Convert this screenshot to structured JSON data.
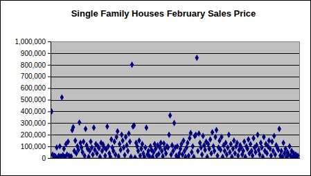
{
  "chart_data": {
    "type": "scatter",
    "title": "Single Family Houses February Sales Price",
    "x": [
      1,
      2,
      3,
      4,
      5,
      6,
      7,
      8,
      9,
      10,
      11,
      12,
      13,
      14,
      15,
      16,
      17,
      18,
      19,
      20,
      21,
      22,
      23,
      24,
      25,
      26,
      27,
      28,
      29,
      30,
      31,
      32,
      33,
      34,
      35,
      36,
      37,
      38,
      39,
      40,
      41,
      42,
      43,
      44,
      45,
      46,
      47,
      48,
      49,
      50,
      51,
      52,
      53,
      54,
      55,
      56,
      57,
      58,
      59,
      60,
      61,
      62,
      63,
      64,
      65,
      66,
      67,
      68,
      69,
      70,
      71,
      72,
      73,
      74,
      75,
      76,
      77,
      78,
      79,
      80,
      81,
      82,
      83,
      84,
      85,
      86,
      87,
      88,
      89,
      90,
      91,
      92,
      93,
      94,
      95,
      96,
      97,
      98,
      99,
      100,
      101,
      102,
      103,
      104,
      105,
      106,
      107,
      108,
      109,
      110,
      111,
      112,
      113,
      114,
      115,
      116,
      117,
      118,
      119,
      120,
      121,
      122,
      123,
      124,
      125,
      126,
      127,
      128,
      129,
      130,
      131,
      132,
      133,
      134,
      135,
      136,
      137,
      138,
      139,
      140,
      141,
      142,
      143,
      144,
      145,
      146,
      147,
      148,
      149,
      150,
      151,
      152,
      153,
      154,
      155,
      156,
      157,
      158,
      159,
      160,
      161,
      162,
      163,
      164,
      165,
      166,
      167,
      168,
      169,
      170,
      171,
      172,
      173,
      174,
      175,
      176,
      177,
      178,
      179,
      180,
      181,
      182,
      183,
      184,
      185,
      186,
      187,
      188,
      189,
      190,
      191,
      192,
      193,
      194,
      195,
      196,
      197,
      198,
      199,
      200,
      201,
      202,
      203,
      204,
      205,
      206,
      207,
      208,
      209,
      210,
      211,
      212,
      213,
      214,
      215,
      216,
      217,
      218,
      219,
      220,
      221,
      222,
      223,
      224,
      225,
      226,
      227,
      228,
      229,
      230,
      231,
      232,
      233,
      234,
      235,
      236,
      237,
      238,
      239,
      240
    ],
    "values": [
      400000,
      30000,
      15000,
      20000,
      10000,
      90000,
      5000,
      20000,
      100000,
      15000,
      520000,
      25000,
      80000,
      10000,
      120000,
      30000,
      140000,
      20000,
      5000,
      15000,
      240000,
      265000,
      60000,
      150000,
      40000,
      100000,
      70000,
      305000,
      130000,
      90000,
      50000,
      140000,
      20000,
      250000,
      110000,
      80000,
      10000,
      60000,
      140000,
      90000,
      30000,
      260000,
      70000,
      120000,
      40000,
      100000,
      85000,
      10000,
      130000,
      60000,
      115000,
      90000,
      20000,
      75000,
      270000,
      100000,
      40000,
      10000,
      160000,
      90000,
      60000,
      140000,
      30000,
      180000,
      230000,
      15000,
      120000,
      70000,
      200000,
      150000,
      90000,
      25000,
      180000,
      110000,
      60000,
      210000,
      140000,
      10000,
      800000,
      270000,
      280000,
      5000,
      130000,
      100000,
      60000,
      150000,
      20000,
      80000,
      120000,
      40000,
      10000,
      90000,
      260000,
      30000,
      60000,
      15000,
      100000,
      70000,
      10000,
      50000,
      120000,
      80000,
      20000,
      110000,
      35000,
      90000,
      130000,
      60000,
      15000,
      125000,
      80000,
      40000,
      100000,
      90000,
      200000,
      365000,
      30000,
      110000,
      60000,
      300000,
      90000,
      20000,
      100000,
      10000,
      40000,
      80000,
      120000,
      30000,
      150000,
      60000,
      10000,
      90000,
      130000,
      20000,
      170000,
      215000,
      50000,
      100000,
      10000,
      190000,
      200000,
      860000,
      60000,
      210000,
      130000,
      90000,
      30000,
      190000,
      110000,
      70000,
      140000,
      10000,
      120000,
      80000,
      160000,
      40000,
      220000,
      100000,
      60000,
      180000,
      240000,
      20000,
      90000,
      150000,
      70000,
      180000,
      10000,
      110000,
      60000,
      130000,
      30000,
      90000,
      200000,
      50000,
      120000,
      10000,
      80000,
      150000,
      40000,
      100000,
      130000,
      20000,
      70000,
      110000,
      90000,
      30000,
      60000,
      140000,
      10000,
      100000,
      80000,
      160000,
      40000,
      120000,
      60000,
      20000,
      170000,
      90000,
      50000,
      110000,
      200000,
      70000,
      30000,
      130000,
      90000,
      10000,
      180000,
      60000,
      120000,
      40000,
      100000,
      150000,
      80000,
      20000,
      140000,
      60000,
      190000,
      30000,
      110000,
      90000,
      70000,
      250000,
      20000,
      60000,
      10000,
      130000,
      40000,
      80000,
      10000,
      50000,
      30000,
      100000,
      20000,
      60000,
      5000,
      40000,
      15000,
      30000,
      10000,
      20000
    ],
    "color": "#000080",
    "marker": "diamond",
    "xlim": [
      0,
      242
    ],
    "ylim": [
      0,
      1000000
    ],
    "yticks": [
      0,
      {
        "value": 100000,
        "label": "100,000"
      },
      {
        "value": 200000,
        "label": "200,000"
      },
      {
        "value": 300000,
        "label": "300,000"
      },
      {
        "value": 400000,
        "label": "400,000"
      },
      {
        "value": 500000,
        "label": "500,000"
      },
      {
        "value": 600000,
        "label": "600,000"
      },
      {
        "value": 700000,
        "label": "700,000"
      },
      {
        "value": 800000,
        "label": "800,000"
      },
      {
        "value": 900000,
        "label": "900,000"
      },
      {
        "value": 1000000,
        "label": "1,000,000"
      }
    ],
    "grid": true,
    "tick_labels": "y"
  }
}
